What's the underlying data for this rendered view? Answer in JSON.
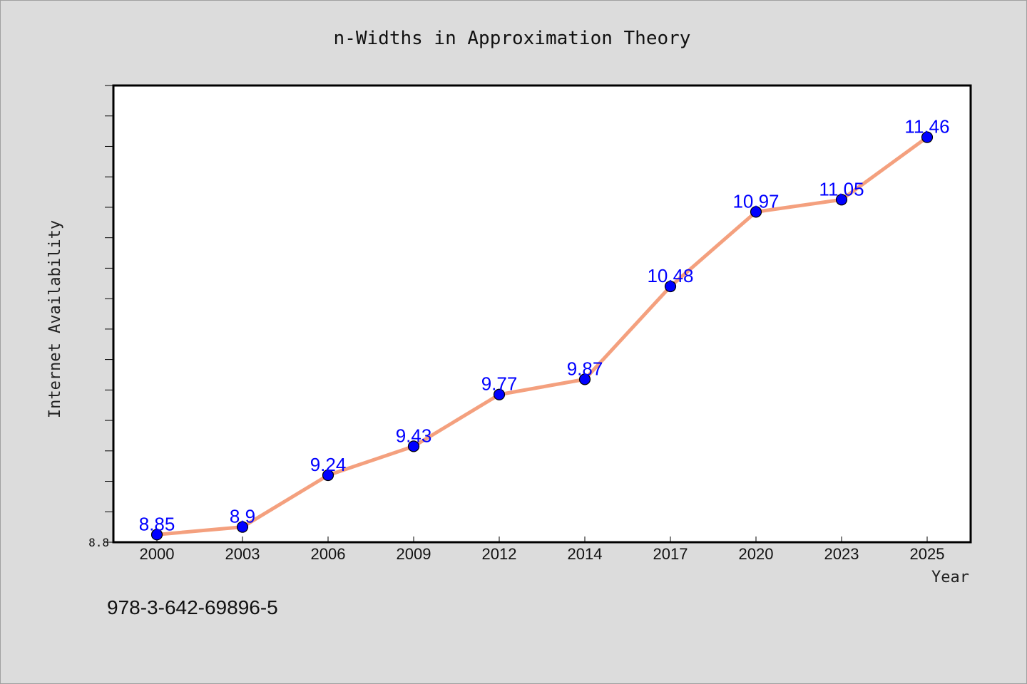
{
  "colors": {
    "background": "#dcdcdc",
    "plot_background": "#ffffff",
    "line": "#f4a07e",
    "marker": "#0000ff",
    "data_label": "#0000ff"
  },
  "footer": {
    "isbn": "978-3-642-69896-5"
  },
  "chart_data": {
    "type": "line",
    "title": "n-Widths in Approximation Theory",
    "xlabel": "Year",
    "ylabel": "Internet Availability",
    "categories": [
      "2000",
      "2003",
      "2006",
      "2009",
      "2012",
      "2014",
      "2017",
      "2020",
      "2023",
      "2025"
    ],
    "series": [
      {
        "values": [
          8.85,
          8.9,
          9.24,
          9.43,
          9.77,
          9.87,
          10.48,
          10.97,
          11.05,
          11.46
        ],
        "labels": [
          "8.85",
          "8.9",
          "9.24",
          "9.43",
          "9.77",
          "9.87",
          "10.48",
          "10.97",
          "11.05",
          "11.46"
        ]
      }
    ],
    "y_tick_labels": [
      "8.8"
    ],
    "ylim": [
      8.8,
      11.8
    ],
    "grid": false,
    "legend": false
  }
}
